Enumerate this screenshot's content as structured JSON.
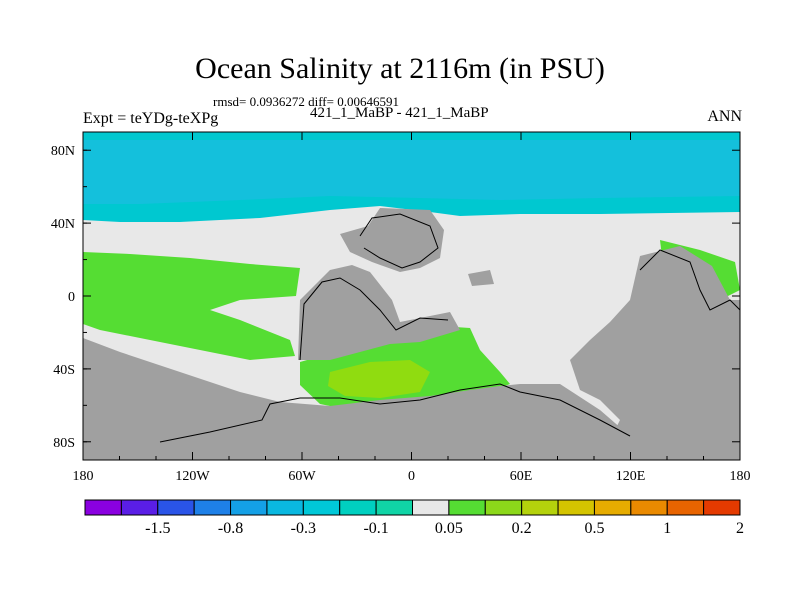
{
  "header": {
    "title": "Ocean Salinity at 2116m (in PSU)",
    "stats": "rmsd= 0.0936272 diff= 0.00646591",
    "subtitle": "421_1_MaBP - 421_1_MaBP",
    "left_label": "Expt = teYDg-teXPg",
    "right_label": "ANN"
  },
  "colors": {
    "land": "#a0a0a0",
    "zero_band": "#e8e8e8",
    "positive_1": "#55dd33",
    "positive_2": "#90dc10",
    "negative_1": "#00c8d0",
    "negative_2": "#00d0dc"
  },
  "chart_data": {
    "type": "heatmap",
    "title": "Ocean Salinity at 2116m (in PSU)",
    "variable": "salinity difference",
    "units": "PSU",
    "x_axis": {
      "range": [
        -180,
        180
      ],
      "ticks": [
        -180,
        -120,
        -60,
        0,
        60,
        120,
        180
      ],
      "tick_labels": [
        "180",
        "120W",
        "60W",
        "0",
        "60E",
        "120E",
        "180"
      ]
    },
    "y_axis": {
      "range": [
        -90,
        90
      ],
      "ticks": [
        80,
        40,
        0,
        -40,
        -80
      ],
      "tick_labels": [
        "80N",
        "40N",
        "0",
        "40S",
        "80S"
      ]
    },
    "colorbar": {
      "colors": [
        "#8a00e0",
        "#5a1ee6",
        "#2a54e8",
        "#1e80e8",
        "#14a0e6",
        "#0ab8e0",
        "#00c8d8",
        "#00d0c0",
        "#10d4a6",
        "#e8e8e8",
        "#55dd33",
        "#8cd81a",
        "#b4d20c",
        "#d4c400",
        "#e6ac00",
        "#ea8a00",
        "#e86400",
        "#e43a00"
      ],
      "labels": [
        "-1.5",
        "-0.8",
        "-0.3",
        "-0.1",
        "0.05",
        "0.2",
        "0.5",
        "1",
        "2"
      ]
    },
    "regions": [
      {
        "name": "northern high-latitude ocean",
        "value_range": "-0.3 to -0.1"
      },
      {
        "name": "tropical Atlantic / mid-latitude band",
        "value_range": "-0.1 to 0.05"
      },
      {
        "name": "eastern tropical Pacific",
        "value_range": "0.05 to 0.2"
      },
      {
        "name": "South Atlantic",
        "value_range": "0.2 to 0.5"
      }
    ]
  }
}
